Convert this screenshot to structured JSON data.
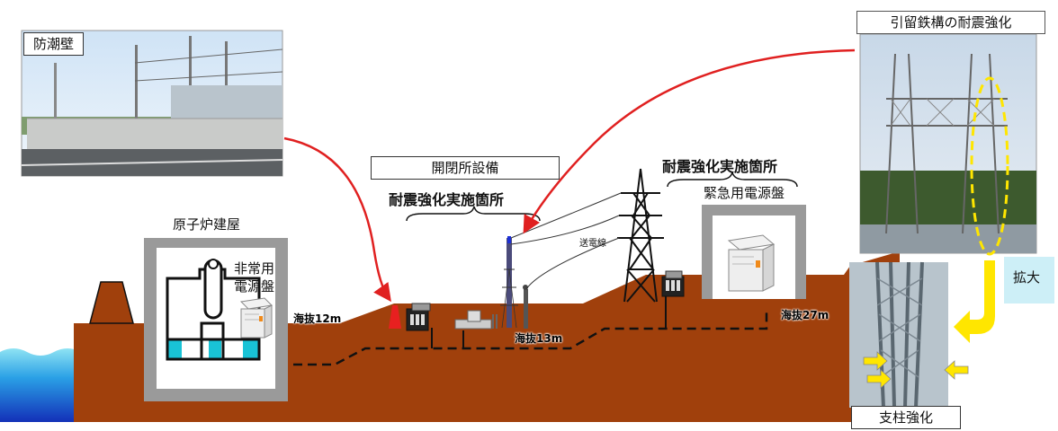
{
  "labels": {
    "seawall": "防潮壁",
    "switching_station": "開閉所設備",
    "seismic_site_1": "耐震強化実施箇所",
    "seismic_site_2": "耐震強化実施箇所",
    "emergency_panel": "緊急用電源盤",
    "reactor_building": "原子炉建屋",
    "emergency_power_1": "非常用",
    "emergency_power_2": "電源盤",
    "transmission_line": "送電線",
    "dead_end_tower": "引留鉄構の耐震強化",
    "enlarge": "拡大",
    "strut_reinforcement": "支柱強化",
    "alt_12": "海抜12m",
    "alt_13": "海抜13m",
    "alt_27": "海抜27m"
  },
  "colors": {
    "ground": "#a0400c",
    "sea": "#1f86d8",
    "building_wall": "#9a9a9a",
    "water": "#19c3d6",
    "red_arrow": "#e02020",
    "yellow_arrow": "#ffe600",
    "enlarge_bg": "#cdeff7"
  }
}
